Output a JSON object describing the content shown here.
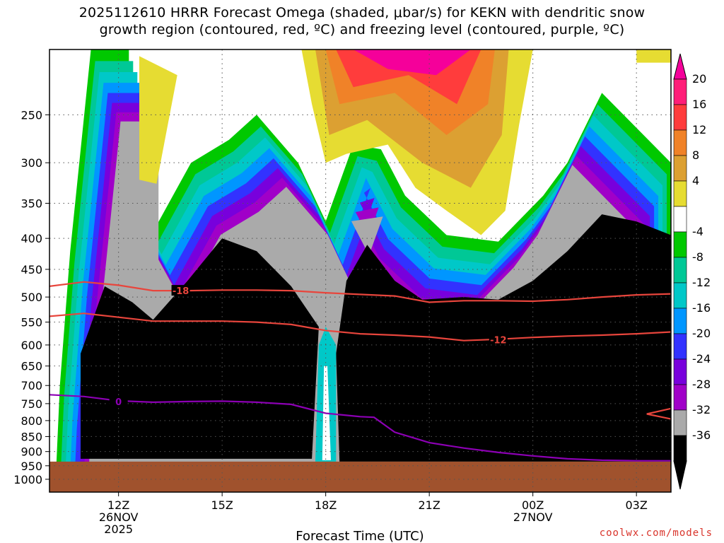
{
  "title": {
    "line1": "2025112610 HRRR Forecast Omega (shaded, μbar/s) for KEKN with dendritic snow",
    "line2": "growth region (contoured, red, ºC) and freezing level (contoured, purple, ºC)"
  },
  "watermark": "coolwx.com/models",
  "chart_data": {
    "type": "heatmap",
    "xlabel": "Forecast Time (UTC)",
    "ylabel": "",
    "x_ticks": [
      {
        "hour": 12,
        "lines": [
          "12Z",
          "26NOV",
          "2025"
        ]
      },
      {
        "hour": 15,
        "lines": [
          "15Z"
        ]
      },
      {
        "hour": 18,
        "lines": [
          "18Z"
        ]
      },
      {
        "hour": 21,
        "lines": [
          "21Z"
        ]
      },
      {
        "hour": 24,
        "lines": [
          "00Z",
          "27NOV"
        ]
      },
      {
        "hour": 27,
        "lines": [
          "03Z"
        ]
      }
    ],
    "xlim": [
      10,
      28
    ],
    "ylim": [
      1050,
      195
    ],
    "y_scale": "log",
    "y_ticks": [
      250,
      300,
      350,
      400,
      450,
      500,
      550,
      600,
      650,
      700,
      750,
      800,
      850,
      900,
      950,
      1000
    ],
    "grid": true,
    "ground_pressure": 935,
    "colorbar": {
      "levels": [
        20,
        16,
        12,
        8,
        4,
        -4,
        -8,
        -12,
        -16,
        -20,
        -24,
        -28,
        -32,
        -36
      ],
      "colors": [
        "#ff1e78",
        "#ff3c3c",
        "#f08228",
        "#dca032",
        "#e6dc32",
        "#ffffff",
        "#00c800",
        "#00c896",
        "#00c8c8",
        "#0096ff",
        "#3232ff",
        "#7800dc",
        "#a000c8",
        "#aaaaaa",
        "#000000"
      ],
      "top_color": "#f5009a",
      "bottom_color": "#000000"
    },
    "ground_color": "#a0522d",
    "contours": [
      {
        "label": "-18",
        "color": "#e8453c",
        "points": [
          [
            10,
            480
          ],
          [
            11,
            472
          ],
          [
            12,
            478
          ],
          [
            13,
            488
          ],
          [
            14,
            488
          ],
          [
            15,
            487
          ],
          [
            16,
            487
          ],
          [
            17,
            488
          ],
          [
            18,
            492
          ],
          [
            19,
            495
          ],
          [
            20,
            498
          ],
          [
            21,
            510
          ],
          [
            22,
            507
          ],
          [
            23,
            507
          ],
          [
            24,
            508
          ],
          [
            25,
            505
          ],
          [
            26,
            500
          ],
          [
            27,
            496
          ],
          [
            28,
            494
          ]
        ],
        "label_at": [
          13.8,
          488
        ]
      },
      {
        "label": "-12",
        "color": "#e8453c",
        "points": [
          [
            10,
            538
          ],
          [
            11,
            532
          ],
          [
            12,
            540
          ],
          [
            13,
            548
          ],
          [
            14,
            548
          ],
          [
            15,
            548
          ],
          [
            16,
            550
          ],
          [
            17,
            555
          ],
          [
            18,
            568
          ],
          [
            19,
            575
          ],
          [
            20,
            578
          ],
          [
            21,
            582
          ],
          [
            22,
            590
          ],
          [
            23,
            587
          ],
          [
            24,
            583
          ],
          [
            25,
            580
          ],
          [
            26,
            578
          ],
          [
            27,
            575
          ],
          [
            28,
            571
          ]
        ],
        "label_at": [
          23.0,
          588
        ]
      },
      {
        "label": "",
        "color": "#e8453c",
        "points": [
          [
            28,
            764
          ],
          [
            27.3,
            780
          ],
          [
            28,
            795
          ]
        ]
      },
      {
        "label": "0",
        "color": "#8c00b4",
        "points": [
          [
            10,
            725
          ],
          [
            11,
            730
          ],
          [
            12,
            742
          ],
          [
            13,
            746
          ],
          [
            14,
            744
          ],
          [
            15,
            743
          ],
          [
            16,
            746
          ],
          [
            17,
            752
          ],
          [
            18,
            778
          ],
          [
            19,
            788
          ],
          [
            19.4,
            790
          ],
          [
            20,
            836
          ],
          [
            21,
            870
          ],
          [
            22,
            888
          ],
          [
            23,
            903
          ],
          [
            24,
            915
          ],
          [
            25,
            925
          ],
          [
            26,
            930
          ],
          [
            27,
            932
          ],
          [
            28,
            932
          ]
        ],
        "label_at": [
          12.0,
          744
        ]
      }
    ],
    "shading": [
      {
        "level": ">=4 (yellow, 12-13Z)",
        "note": "upper-level pocket near 250-320 mb"
      },
      {
        "level": ">=20",
        "note": "upper-level maximum 18-23Z above 280 mb"
      },
      {
        "level": "<=-36",
        "note": "deep column 11-17Z and 19-28Z from ~950 mb to ~400 mb"
      }
    ]
  }
}
